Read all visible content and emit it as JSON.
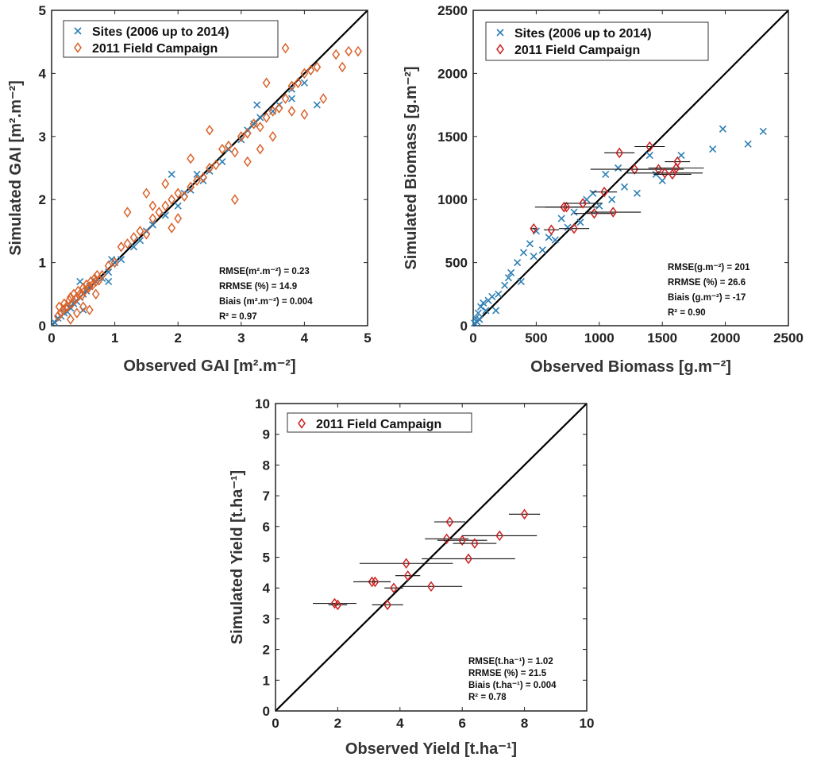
{
  "chart_data": [
    {
      "type": "scatter",
      "xlabel": "Observed GAI [m².m⁻²]",
      "ylabel": "Simulated GAI [m².m⁻²]",
      "xlim": [
        0,
        5
      ],
      "ylim": [
        0,
        5
      ],
      "xticks": [
        "0",
        "1",
        "2",
        "3",
        "4",
        "5"
      ],
      "yticks": [
        "0",
        "1",
        "2",
        "3",
        "4",
        "5"
      ],
      "grid": false,
      "legend_position": "top-left",
      "one_to_one_line": true,
      "stats": [
        "RMSE(m².m⁻²) = 0.23",
        "RRMSE (%) = 14.9",
        "Biais (m².m⁻²) = 0.004",
        "R² = 0.97"
      ],
      "series": [
        {
          "name": "Sites (2006 up to 2014)",
          "marker": "x",
          "color": "#2e7fb5",
          "x": [
            0.05,
            0.1,
            0.15,
            0.2,
            0.25,
            0.3,
            0.35,
            0.4,
            0.45,
            0.5,
            0.55,
            0.6,
            0.7,
            0.8,
            0.9,
            1.0,
            1.1,
            1.3,
            1.5,
            1.6,
            1.8,
            1.9,
            2.0,
            2.1,
            2.2,
            2.4,
            2.5,
            2.7,
            2.8,
            3.0,
            3.1,
            3.2,
            3.3,
            3.5,
            3.6,
            3.8,
            4.0,
            4.2,
            0.45,
            0.5,
            0.9,
            0.95,
            1.4,
            2.3,
            3.25,
            3.8
          ],
          "y": [
            0.05,
            0.12,
            0.15,
            0.2,
            0.22,
            0.28,
            0.35,
            0.38,
            0.45,
            0.5,
            0.55,
            0.62,
            0.7,
            0.75,
            0.85,
            1.0,
            1.05,
            1.25,
            1.5,
            1.6,
            1.75,
            2.4,
            1.9,
            2.1,
            2.15,
            2.3,
            2.45,
            2.6,
            2.8,
            2.95,
            3.1,
            3.2,
            3.3,
            3.4,
            3.5,
            3.75,
            3.85,
            3.5,
            0.7,
            0.25,
            0.7,
            1.05,
            1.35,
            2.4,
            3.5,
            3.6
          ]
        },
        {
          "name": "2011 Field Campaign",
          "marker": "diamond",
          "color": "#d9622b",
          "x": [
            0.1,
            0.12,
            0.15,
            0.18,
            0.2,
            0.22,
            0.25,
            0.28,
            0.3,
            0.32,
            0.35,
            0.38,
            0.4,
            0.42,
            0.45,
            0.48,
            0.5,
            0.52,
            0.55,
            0.58,
            0.6,
            0.62,
            0.65,
            0.68,
            0.7,
            0.72,
            0.75,
            0.3,
            0.4,
            0.5,
            0.6,
            0.7,
            0.9,
            1.0,
            1.1,
            1.2,
            1.3,
            1.4,
            1.5,
            1.6,
            1.7,
            1.8,
            1.9,
            2.0,
            2.1,
            2.2,
            2.3,
            2.4,
            2.5,
            2.6,
            2.7,
            2.8,
            2.9,
            3.0,
            3.1,
            3.2,
            3.3,
            3.4,
            3.5,
            3.6,
            3.7,
            3.8,
            3.9,
            4.0,
            4.1,
            4.2,
            4.5,
            4.6,
            4.7,
            4.85,
            1.5,
            1.8,
            2.0,
            2.5,
            3.4,
            3.5,
            3.8,
            4.3,
            4.0,
            2.9,
            3.1,
            1.2,
            1.6,
            2.2,
            1.9,
            0.8,
            3.3,
            3.7
          ],
          "y": [
            0.15,
            0.3,
            0.2,
            0.25,
            0.35,
            0.28,
            0.3,
            0.4,
            0.45,
            0.35,
            0.5,
            0.42,
            0.45,
            0.55,
            0.5,
            0.48,
            0.6,
            0.55,
            0.65,
            0.6,
            0.62,
            0.7,
            0.65,
            0.75,
            0.7,
            0.8,
            0.72,
            0.1,
            0.2,
            0.3,
            0.25,
            0.5,
            0.95,
            1.0,
            1.25,
            1.3,
            1.4,
            1.5,
            1.45,
            1.7,
            1.8,
            1.9,
            2.0,
            2.1,
            2.05,
            2.2,
            2.3,
            2.35,
            2.5,
            2.55,
            2.8,
            2.85,
            2.75,
            3.0,
            3.05,
            3.2,
            3.15,
            3.3,
            3.4,
            3.45,
            3.6,
            3.8,
            3.85,
            4.0,
            4.05,
            4.1,
            4.3,
            4.1,
            4.35,
            4.35,
            2.1,
            2.25,
            1.7,
            3.1,
            3.85,
            3.0,
            3.4,
            3.6,
            3.35,
            2.0,
            2.6,
            1.8,
            1.9,
            2.65,
            1.55,
            0.8,
            2.8,
            4.4
          ]
        }
      ]
    },
    {
      "type": "scatter",
      "xlabel": "Observed Biomass [g.m⁻²]",
      "ylabel": "Simulated Biomass [g.m⁻²]",
      "xlim": [
        0,
        2500
      ],
      "ylim": [
        0,
        2500
      ],
      "xticks": [
        "0",
        "500",
        "1000",
        "1500",
        "2000",
        "2500"
      ],
      "yticks": [
        "0",
        "500",
        "1000",
        "1500",
        "2000",
        "2500"
      ],
      "grid": false,
      "legend_position": "top-left",
      "one_to_one_line": true,
      "stats": [
        "RMSE(g.m⁻²) = 201",
        "RRMSE (%) = 26.6",
        "Biais (g.m⁻²) = -17",
        "R² = 0.90"
      ],
      "series": [
        {
          "name": "Sites (2006 up to 2014)",
          "marker": "x",
          "color": "#2e7fb5",
          "x": [
            10,
            20,
            30,
            40,
            50,
            60,
            80,
            100,
            120,
            150,
            180,
            200,
            250,
            280,
            300,
            350,
            380,
            400,
            450,
            480,
            500,
            550,
            600,
            650,
            700,
            750,
            800,
            850,
            900,
            950,
            1000,
            1050,
            1100,
            1150,
            1200,
            1300,
            1400,
            1450,
            1500,
            1650,
            1900,
            1980,
            2180,
            2300
          ],
          "y": [
            20,
            60,
            30,
            100,
            50,
            150,
            180,
            120,
            200,
            230,
            120,
            250,
            320,
            380,
            420,
            500,
            350,
            580,
            650,
            550,
            750,
            600,
            700,
            680,
            850,
            780,
            900,
            820,
            1000,
            1050,
            950,
            1200,
            1000,
            1250,
            1100,
            1050,
            1350,
            1200,
            1150,
            1350,
            1400,
            1560,
            1440,
            1540
          ]
        },
        {
          "name": "2011 Field Campaign",
          "marker": "diamond",
          "color": "#cc2222",
          "x": [
            480,
            620,
            720,
            740,
            800,
            870,
            960,
            1040,
            1110,
            1160,
            1280,
            1400,
            1470,
            1520,
            1580,
            1610,
            1620
          ],
          "y": [
            770,
            760,
            940,
            940,
            770,
            970,
            890,
            1060,
            900,
            1370,
            1240,
            1420,
            1240,
            1210,
            1200,
            1250,
            1300
          ],
          "xerr": [
            20,
            60,
            150,
            250,
            120,
            150,
            160,
            100,
            220,
            120,
            350,
            120,
            200,
            300,
            150,
            220,
            100
          ]
        }
      ]
    },
    {
      "type": "scatter",
      "xlabel": "Observed Yield [t.ha⁻¹]",
      "ylabel": "Simulated Yield [t.ha⁻¹]",
      "xlim": [
        0,
        10
      ],
      "ylim": [
        0,
        10
      ],
      "xticks": [
        "0",
        "2",
        "4",
        "6",
        "8",
        "10"
      ],
      "yticks": [
        "0",
        "1",
        "2",
        "3",
        "4",
        "5",
        "6",
        "7",
        "8",
        "9",
        "10"
      ],
      "grid": false,
      "legend_position": "top-left",
      "one_to_one_line": true,
      "stats": [
        "RMSE(t.ha⁻¹) = 1.02",
        "RRMSE (%) = 21.5",
        "Biais (t.ha⁻¹) = 0.004",
        "R² = 0.78"
      ],
      "series": [
        {
          "name": "2011 Field Campaign",
          "marker": "diamond",
          "color": "#cc2222",
          "x": [
            1.9,
            2.0,
            3.1,
            3.2,
            3.6,
            3.8,
            4.2,
            4.25,
            5.0,
            5.5,
            5.6,
            6.0,
            6.2,
            6.4,
            7.2,
            8.0
          ],
          "y": [
            3.5,
            3.45,
            4.2,
            4.2,
            3.45,
            4.0,
            4.8,
            4.4,
            4.05,
            5.6,
            6.15,
            5.55,
            4.95,
            5.45,
            5.7,
            6.4
          ],
          "xerr": [
            0.7,
            0.3,
            0.6,
            0.5,
            0.5,
            0.3,
            1.5,
            0.4,
            1.0,
            0.7,
            0.5,
            0.8,
            1.5,
            0.7,
            1.2,
            0.5
          ]
        }
      ]
    }
  ]
}
